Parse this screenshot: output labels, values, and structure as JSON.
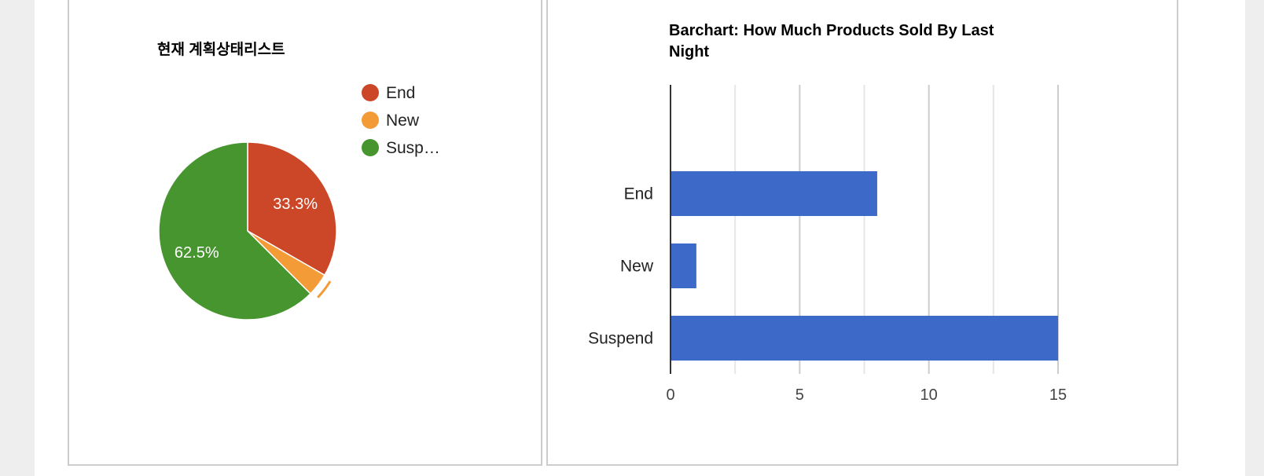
{
  "colors": {
    "end": "#cc4628",
    "new": "#f39c37",
    "suspend": "#46952e",
    "bar": "#3d69c8"
  },
  "chart_data": [
    {
      "type": "pie",
      "title": "현재 계획상태리스트",
      "legend_position": "right",
      "slices": [
        {
          "label": "End",
          "legend_label": "End",
          "percent": 33.3,
          "color": "#cc4628"
        },
        {
          "label": "New",
          "legend_label": "New",
          "percent": 4.2,
          "color": "#f39c37"
        },
        {
          "label": "Suspend",
          "legend_label": "Susp…",
          "percent": 62.5,
          "color": "#46952e"
        }
      ],
      "data_labels": [
        "33.3%",
        "",
        "62.5%"
      ]
    },
    {
      "type": "bar",
      "orientation": "horizontal",
      "title_lines": [
        "Barchart: How Much Products Sold By Last",
        "Night"
      ],
      "categories": [
        "End",
        "New",
        "Suspend"
      ],
      "values": [
        8,
        1,
        15
      ],
      "xlim": [
        0,
        15
      ],
      "xticks": [
        "0",
        "5",
        "10",
        "15"
      ],
      "grid": true
    }
  ]
}
